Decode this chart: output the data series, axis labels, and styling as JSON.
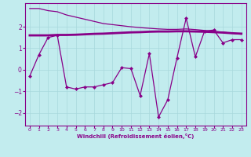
{
  "xlabel": "Windchill (Refroidissement éolien,°C)",
  "background_color": "#c2ecee",
  "line_color": "#880088",
  "xlim": [
    -0.5,
    23.5
  ],
  "ylim": [
    -2.6,
    3.1
  ],
  "yticks": [
    -2,
    -1,
    0,
    1,
    2
  ],
  "xticks": [
    0,
    1,
    2,
    3,
    4,
    5,
    6,
    7,
    8,
    9,
    10,
    11,
    12,
    13,
    14,
    15,
    16,
    17,
    18,
    19,
    20,
    21,
    22,
    23
  ],
  "series1_x": [
    0,
    1,
    2,
    3,
    4,
    5,
    6,
    7,
    8,
    9,
    10,
    11,
    12,
    13,
    14,
    15,
    16,
    17,
    18,
    19,
    20,
    21,
    22,
    23
  ],
  "series1_y": [
    -0.3,
    0.7,
    1.5,
    1.6,
    -0.8,
    -0.9,
    -0.8,
    -0.8,
    -0.7,
    -0.6,
    0.1,
    0.05,
    -1.2,
    0.75,
    -2.2,
    -1.4,
    0.55,
    2.4,
    0.6,
    1.8,
    1.85,
    1.25,
    1.4,
    1.4
  ],
  "series2_x": [
    0,
    1,
    2,
    3,
    4,
    5,
    6,
    7,
    8,
    9,
    10,
    11,
    12,
    13,
    14,
    15,
    16,
    17,
    18,
    19,
    20,
    21,
    22,
    23
  ],
  "series2_y": [
    1.6,
    1.6,
    1.6,
    1.62,
    1.62,
    1.63,
    1.65,
    1.67,
    1.68,
    1.7,
    1.72,
    1.74,
    1.75,
    1.77,
    1.78,
    1.78,
    1.79,
    1.79,
    1.78,
    1.77,
    1.75,
    1.73,
    1.7,
    1.68
  ],
  "series3_x": [
    0,
    1,
    2,
    3,
    4,
    5,
    6,
    7,
    8,
    9,
    10,
    11,
    12,
    13,
    14,
    15,
    16,
    17,
    18,
    19,
    20,
    21,
    22,
    23
  ],
  "series3_y": [
    2.85,
    2.85,
    2.75,
    2.7,
    2.55,
    2.45,
    2.35,
    2.25,
    2.15,
    2.1,
    2.05,
    2.0,
    1.96,
    1.93,
    1.9,
    1.88,
    1.88,
    1.9,
    1.87,
    1.83,
    1.79,
    1.75,
    1.7,
    1.65
  ]
}
